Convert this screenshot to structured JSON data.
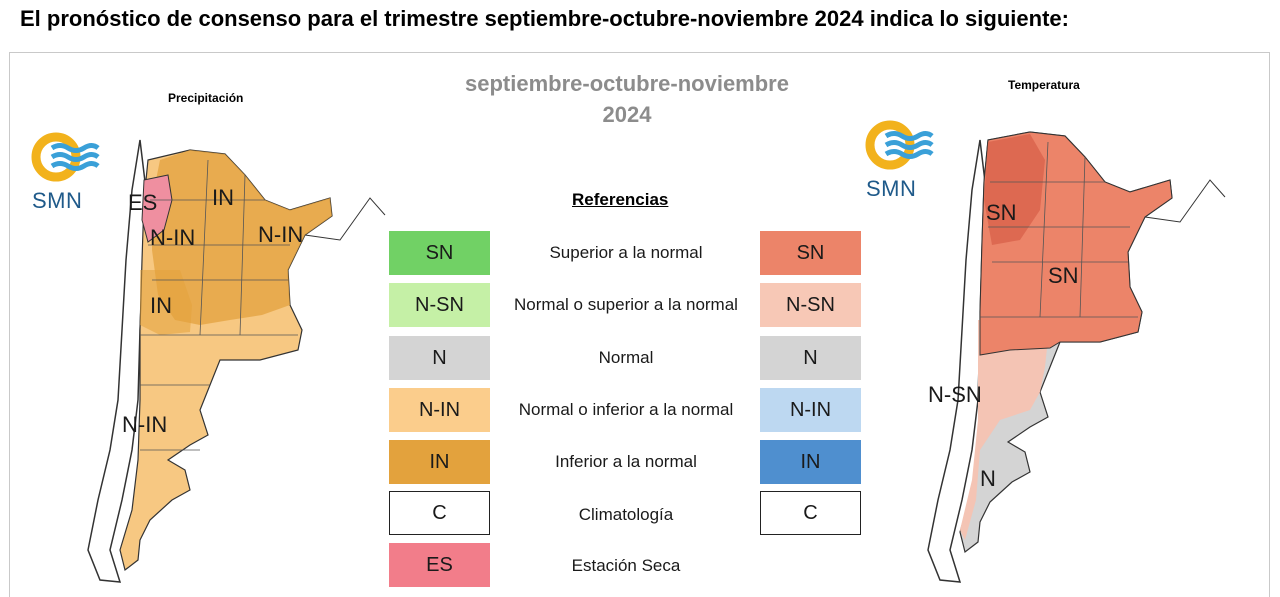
{
  "headline": "El pronóstico de consenso para el trimestre septiembre-octubre-noviembre 2024 indica lo siguiente:",
  "center_title": [
    "septiembre-octubre-noviembre",
    "2024"
  ],
  "precip": {
    "title": "Precipitación",
    "logo_text": "SMN",
    "labels": [
      "ES",
      "IN",
      "N-IN",
      "N-IN",
      "IN",
      "N-IN"
    ],
    "colors": {
      "in": "#e3a23d",
      "n_in": "#f7c882",
      "es": "#ef8fa0"
    }
  },
  "temp": {
    "title": "Temperatura",
    "logo_text": "SMN",
    "labels": [
      "SN",
      "SN",
      "N-SN",
      "N"
    ],
    "colors": {
      "sn": "#ec8469",
      "n_sn": "#f4c4b4",
      "n": "#d4d4d4"
    }
  },
  "references": {
    "title": "Referencias",
    "rows": [
      {
        "left": "SN",
        "left_color": "#71d165",
        "desc": "Superior a la normal",
        "right": "SN",
        "right_color": "#ec8469"
      },
      {
        "left": "N-SN",
        "left_color": "#c5f0a6",
        "desc": "Normal o superior a la normal",
        "right": "N-SN",
        "right_color": "#f7c8b6"
      },
      {
        "left": "N",
        "left_color": "#d4d4d4",
        "desc": "Normal",
        "right": "N",
        "right_color": "#d4d4d4"
      },
      {
        "left": "N-IN",
        "left_color": "#fbcd8c",
        "desc": "Normal o inferior a la normal",
        "right": "N-IN",
        "right_color": "#bdd8f1"
      },
      {
        "left": "IN",
        "left_color": "#e3a23d",
        "desc": "Inferior a la normal",
        "right": "IN",
        "right_color": "#4f8fcf"
      },
      {
        "left": "C",
        "left_color": "#ffffff",
        "desc": "Climatología",
        "right": "C",
        "right_color": "#ffffff"
      },
      {
        "left": "ES",
        "left_color": "#f27d8a",
        "desc": "Estación Seca",
        "right": "",
        "right_color": ""
      }
    ]
  }
}
